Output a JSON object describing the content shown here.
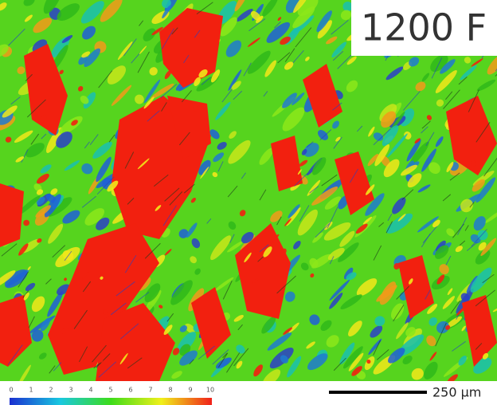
{
  "label": "1200 F",
  "colorbar": {
    "ticks": [
      0,
      1,
      2,
      3,
      4,
      5,
      6,
      7,
      8,
      9,
      10
    ]
  },
  "scale_bar": {
    "label": "250 µm"
  }
}
